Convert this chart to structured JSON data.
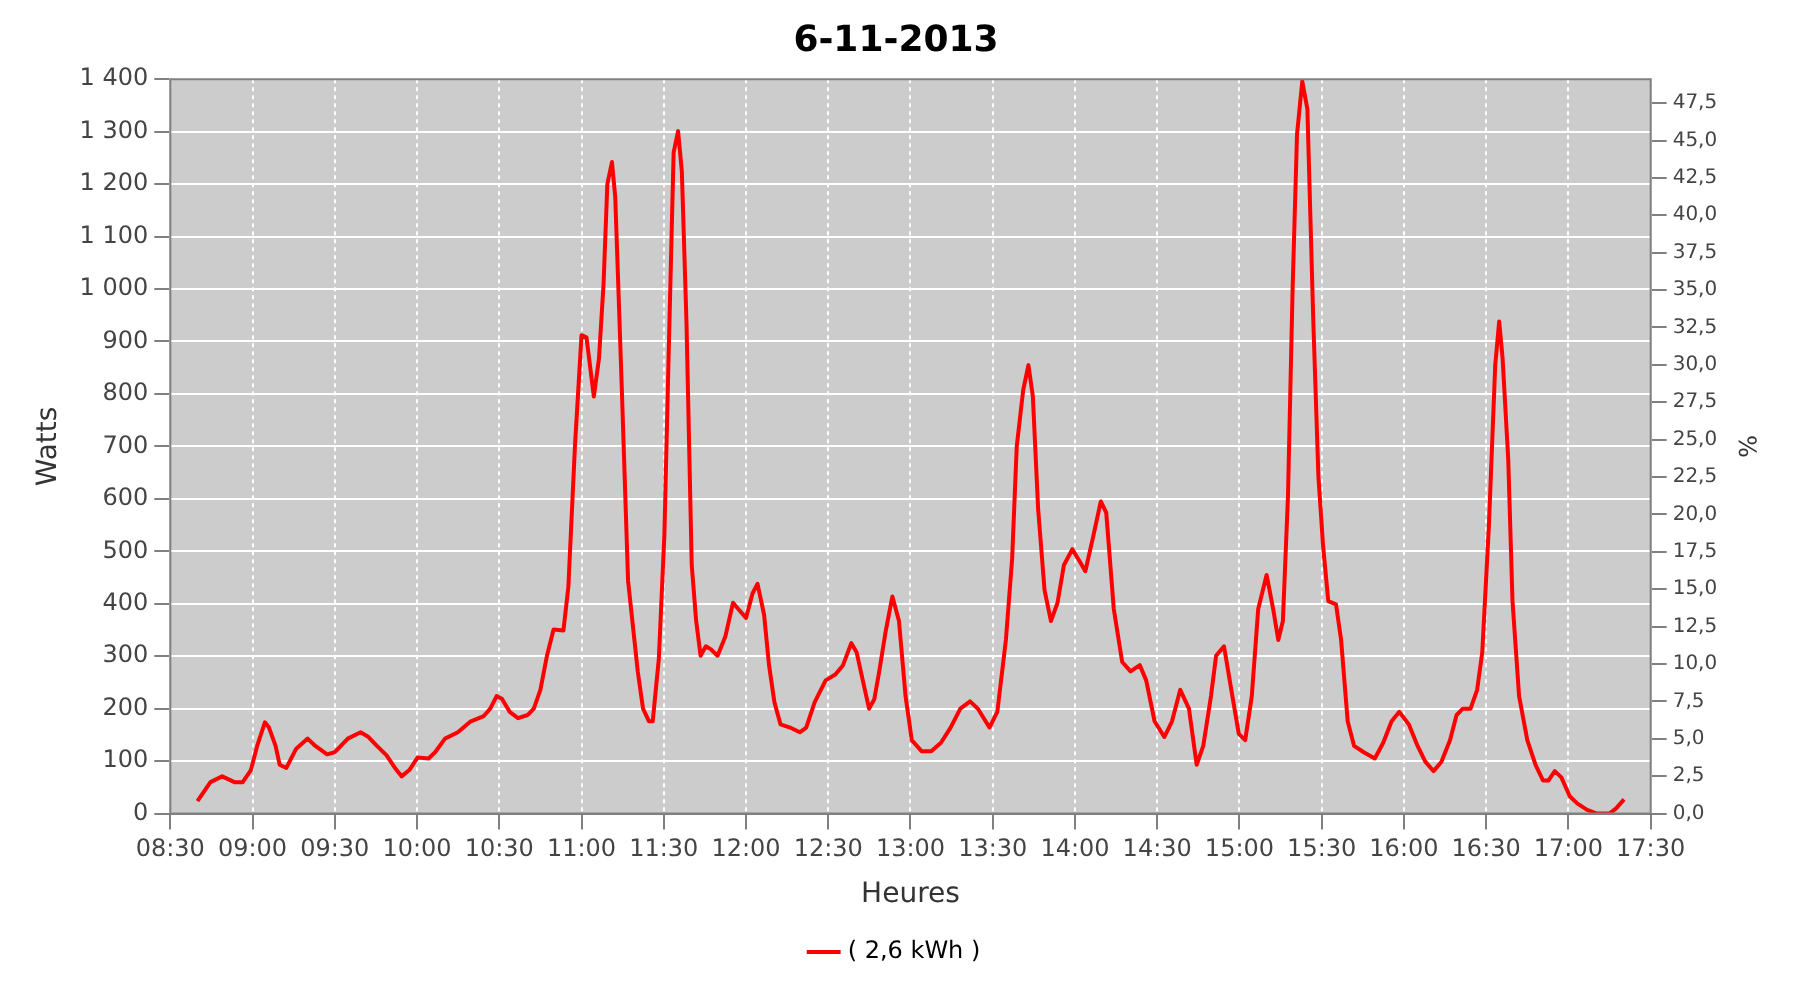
{
  "chart_data": {
    "type": "line",
    "title": "6-11-2013",
    "xlabel": "Heures",
    "ylabel": "Watts",
    "y2label": "%",
    "xlim": [
      8.5,
      17.5
    ],
    "xticks": [
      {
        "value": 8.5,
        "label": "08:30"
      },
      {
        "value": 9,
        "label": "09:00"
      },
      {
        "value": 9.5,
        "label": "09:30"
      },
      {
        "value": 10,
        "label": "10:00"
      },
      {
        "value": 10.5,
        "label": "10:30"
      },
      {
        "value": 11,
        "label": "11:00"
      },
      {
        "value": 11.5,
        "label": "11:30"
      },
      {
        "value": 12,
        "label": "12:00"
      },
      {
        "value": 12.5,
        "label": "12:30"
      },
      {
        "value": 13,
        "label": "13:00"
      },
      {
        "value": 13.5,
        "label": "13:30"
      },
      {
        "value": 14,
        "label": "14:00"
      },
      {
        "value": 14.5,
        "label": "14:30"
      },
      {
        "value": 15,
        "label": "15:00"
      },
      {
        "value": 15.5,
        "label": "15:30"
      },
      {
        "value": 16,
        "label": "16:00"
      },
      {
        "value": 16.5,
        "label": "16:30"
      },
      {
        "value": 17,
        "label": "17:00"
      },
      {
        "value": 17.5,
        "label": "17:30"
      }
    ],
    "ylim": [
      0,
      1400
    ],
    "yticks": [
      0,
      100,
      200,
      300,
      400,
      500,
      600,
      700,
      800,
      900,
      {
        "value": 1000,
        "label": "1 000"
      },
      {
        "value": 1100,
        "label": "1 100"
      },
      {
        "value": 1200,
        "label": "1 200"
      },
      {
        "value": 1300,
        "label": "1 300"
      },
      {
        "value": 1400,
        "label": "1 400"
      }
    ],
    "y2lim": [
      0,
      49.1
    ],
    "y2ticks": [
      {
        "value": 0,
        "label": "0,0"
      },
      {
        "value": 2.5,
        "label": "2,5"
      },
      {
        "value": 5,
        "label": "5,0"
      },
      {
        "value": 7.5,
        "label": "7,5"
      },
      {
        "value": 10,
        "label": "10,0"
      },
      {
        "value": 12.5,
        "label": "12,5"
      },
      {
        "value": 15,
        "label": "15,0"
      },
      {
        "value": 17.5,
        "label": "17,5"
      },
      {
        "value": 20,
        "label": "20,0"
      },
      {
        "value": 22.5,
        "label": "22,5"
      },
      {
        "value": 25,
        "label": "25,0"
      },
      {
        "value": 27.5,
        "label": "27,5"
      },
      {
        "value": 30,
        "label": "30,0"
      },
      {
        "value": 32.5,
        "label": "32,5"
      },
      {
        "value": 35,
        "label": "35,0"
      },
      {
        "value": 37.5,
        "label": "37,5"
      },
      {
        "value": 40,
        "label": "40,0"
      },
      {
        "value": 42.5,
        "label": "42,5"
      },
      {
        "value": 45,
        "label": "45,0"
      },
      {
        "value": 47.5,
        "label": "47,5"
      }
    ],
    "grid": true,
    "legend": "bottom",
    "marker": "none",
    "line_style": "solid",
    "series": [
      {
        "name": "( 2,6 kWh )",
        "color": "#ff0000",
        "x": [
          8.665,
          8.744,
          8.815,
          8.89,
          8.94,
          8.99,
          9.028,
          9.075,
          9.1,
          9.14,
          9.165,
          9.205,
          9.264,
          9.335,
          9.382,
          9.453,
          9.5,
          9.579,
          9.657,
          9.705,
          9.756,
          9.815,
          9.866,
          9.906,
          9.953,
          10.004,
          10.07,
          10.11,
          10.17,
          10.248,
          10.327,
          10.406,
          10.445,
          10.484,
          10.516,
          10.563,
          10.614,
          10.673,
          10.71,
          10.75,
          10.79,
          10.83,
          10.89,
          10.92,
          10.96,
          11.0,
          11.03,
          11.075,
          11.106,
          11.134,
          11.157,
          11.185,
          11.205,
          11.244,
          11.283,
          11.342,
          11.374,
          11.41,
          11.433,
          11.47,
          11.504,
          11.53,
          11.56,
          11.587,
          11.61,
          11.638,
          11.67,
          11.697,
          11.724,
          11.756,
          11.787,
          11.827,
          11.874,
          11.921,
          11.953,
          12.0,
          12.04,
          12.07,
          12.11,
          12.14,
          12.173,
          12.21,
          12.268,
          12.327,
          12.366,
          12.417,
          12.484,
          12.543,
          12.59,
          12.64,
          12.673,
          12.71,
          12.748,
          12.78,
          12.81,
          12.85,
          12.89,
          12.93,
          12.97,
          13.008,
          13.067,
          13.126,
          13.185,
          13.244,
          13.303,
          13.362,
          13.41,
          13.48,
          13.528,
          13.58,
          13.618,
          13.646,
          13.685,
          13.717,
          13.744,
          13.776,
          13.815,
          13.854,
          13.894,
          13.933,
          13.984,
          14.03,
          14.063,
          14.11,
          14.157,
          14.19,
          14.236,
          14.287,
          14.338,
          14.394,
          14.433,
          14.484,
          14.543,
          14.59,
          14.64,
          14.693,
          14.74,
          14.78,
          14.827,
          14.858,
          14.906,
          14.957,
          14.996,
          15.035,
          15.075,
          15.114,
          15.165,
          15.205,
          15.236,
          15.264,
          15.295,
          15.323,
          15.35,
          15.382,
          15.413,
          15.449,
          15.48,
          15.508,
          15.54,
          15.587,
          15.618,
          15.658,
          15.697,
          15.756,
          15.823,
          15.874,
          15.925,
          15.972,
          16.03,
          16.083,
          16.13,
          16.18,
          16.228,
          16.28,
          16.32,
          16.358,
          16.405,
          16.445,
          16.476,
          16.516,
          16.555,
          16.579,
          16.6,
          16.634,
          16.66,
          16.7,
          16.75,
          16.8,
          16.846,
          16.878,
          16.917,
          16.957,
          17.008,
          17.055,
          17.114,
          17.173,
          17.25,
          17.29,
          17.338
        ],
        "values": [
          24,
          60,
          71,
          60,
          60,
          83,
          129,
          174,
          164,
          129,
          93,
          87,
          123,
          143,
          129,
          113,
          117,
          143,
          155,
          146,
          129,
          111,
          87,
          71,
          83,
          107,
          105,
          117,
          143,
          155,
          176,
          186,
          200,
          224,
          219,
          194,
          182,
          188,
          200,
          236,
          301,
          351,
          349,
          432,
          700,
          912,
          908,
          795,
          867,
          1010,
          1200,
          1242,
          1176,
          819,
          444,
          271,
          200,
          176,
          176,
          295,
          533,
          879,
          1260,
          1301,
          1224,
          938,
          474,
          367,
          301,
          319,
          313,
          301,
          337,
          402,
          390,
          373,
          420,
          438,
          379,
          283,
          212,
          170,
          164,
          155,
          164,
          212,
          254,
          265,
          283,
          325,
          307,
          254,
          200,
          218,
          271,
          349,
          414,
          367,
          224,
          140,
          119,
          119,
          135,
          164,
          200,
          214,
          200,
          164,
          194,
          331,
          486,
          700,
          807,
          855,
          795,
          581,
          426,
          367,
          402,
          474,
          504,
          480,
          462,
          527,
          595,
          574,
          390,
          289,
          271,
          283,
          254,
          176,
          146,
          176,
          236,
          200,
          93,
          129,
          224,
          301,
          319,
          224,
          152,
          140,
          224,
          390,
          455,
          390,
          331,
          367,
          605,
          998,
          1295,
          1396,
          1343,
          938,
          643,
          512,
          405,
          399,
          331,
          176,
          129,
          117,
          105,
          135,
          176,
          194,
          170,
          129,
          99,
          81,
          99,
          140,
          188,
          200,
          200,
          236,
          307,
          545,
          855,
          938,
          867,
          676,
          405,
          224,
          140,
          93,
          63,
          63,
          81,
          69,
          33,
          19,
          7,
          0,
          0,
          10,
          27
        ]
      }
    ]
  }
}
